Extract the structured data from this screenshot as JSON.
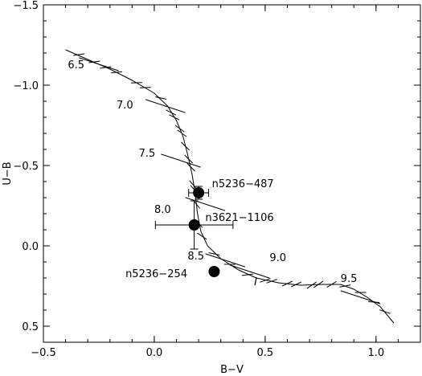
{
  "chart_data": {
    "type": "scatter",
    "xlabel": "B−V",
    "ylabel": "U−B",
    "xlim": [
      -0.5,
      1.2
    ],
    "ylim": [
      0.6,
      -1.5
    ],
    "y_inverted": true,
    "xticks": [
      -0.5,
      0.0,
      0.5,
      1.0
    ],
    "xtick_labels": [
      "−0.5",
      "0.0",
      "0.5",
      "1.0"
    ],
    "yticks": [
      -1.5,
      -1.0,
      -0.5,
      0.0,
      0.5
    ],
    "ytick_labels": [
      "−1.5",
      "−1.0",
      "−0.5",
      "0.0",
      "0.5"
    ],
    "grid": false,
    "model_track": {
      "points": [
        [
          -0.4,
          -1.22
        ],
        [
          -0.3,
          -1.16
        ],
        [
          -0.2,
          -1.1
        ],
        [
          -0.1,
          -1.03
        ],
        [
          0.0,
          -0.95
        ],
        [
          0.06,
          -0.87
        ],
        [
          0.1,
          -0.78
        ],
        [
          0.13,
          -0.68
        ],
        [
          0.15,
          -0.57
        ],
        [
          0.17,
          -0.45
        ],
        [
          0.185,
          -0.32
        ],
        [
          0.195,
          -0.2
        ],
        [
          0.21,
          -0.09
        ],
        [
          0.24,
          0.0
        ],
        [
          0.3,
          0.08
        ],
        [
          0.38,
          0.15
        ],
        [
          0.46,
          0.2
        ],
        [
          0.56,
          0.23
        ],
        [
          0.66,
          0.245
        ],
        [
          0.76,
          0.24
        ],
        [
          0.84,
          0.24
        ],
        [
          0.9,
          0.27
        ],
        [
          0.96,
          0.32
        ],
        [
          1.02,
          0.38
        ],
        [
          1.08,
          0.48
        ]
      ],
      "ticks": [
        {
          "x": -0.34,
          "y": -1.19,
          "len": 0.06,
          "short": true
        },
        {
          "x": -0.27,
          "y": -1.145,
          "len": 0.06,
          "short": true
        },
        {
          "x": -0.22,
          "y": -1.11,
          "len": 0.06,
          "short": true
        },
        {
          "x": -0.17,
          "y": -1.08,
          "len": 0.06,
          "short": true
        },
        {
          "x": -0.08,
          "y": -1.015,
          "len": 0.06,
          "short": true
        },
        {
          "x": -0.04,
          "y": -0.985,
          "len": 0.06,
          "short": true
        },
        {
          "x": 0.03,
          "y": -0.92,
          "len": 0.06,
          "short": true
        },
        {
          "x": 0.075,
          "y": -0.83,
          "len": 0.06,
          "short": true
        },
        {
          "x": 0.09,
          "y": -0.8,
          "len": 0.06,
          "short": true
        },
        {
          "x": 0.115,
          "y": -0.73,
          "len": 0.06,
          "short": true
        },
        {
          "x": 0.125,
          "y": -0.7,
          "len": 0.06,
          "short": true
        },
        {
          "x": 0.14,
          "y": -0.62,
          "len": 0.06,
          "short": true
        },
        {
          "x": 0.155,
          "y": -0.54,
          "len": 0.06,
          "short": true
        },
        {
          "x": 0.165,
          "y": -0.49,
          "len": 0.06,
          "short": true
        },
        {
          "x": 0.175,
          "y": -0.38,
          "len": 0.06,
          "short": true
        },
        {
          "x": 0.18,
          "y": -0.35,
          "len": 0.06,
          "short": true
        },
        {
          "x": 0.19,
          "y": -0.26,
          "len": 0.06,
          "short": true
        },
        {
          "x": 0.2,
          "y": -0.14,
          "len": 0.06,
          "short": true
        },
        {
          "x": 0.215,
          "y": -0.06,
          "len": 0.06,
          "short": true
        },
        {
          "x": 0.27,
          "y": 0.05,
          "len": 0.06,
          "short": true
        },
        {
          "x": 0.34,
          "y": 0.115,
          "len": 0.06,
          "short": true
        },
        {
          "x": 0.42,
          "y": 0.18,
          "len": 0.06,
          "short": true
        },
        {
          "x": 0.5,
          "y": 0.215,
          "len": 0.06,
          "short": true
        },
        {
          "x": 0.53,
          "y": 0.22,
          "len": 0.06,
          "short": true
        },
        {
          "x": 0.6,
          "y": 0.235,
          "len": 0.06,
          "short": true
        },
        {
          "x": 0.64,
          "y": 0.24,
          "len": 0.06,
          "short": true
        },
        {
          "x": 0.71,
          "y": 0.245,
          "len": 0.06,
          "short": true
        },
        {
          "x": 0.74,
          "y": 0.24,
          "len": 0.06,
          "short": true
        },
        {
          "x": 0.8,
          "y": 0.24,
          "len": 0.06,
          "short": true
        },
        {
          "x": 0.86,
          "y": 0.25,
          "len": 0.06,
          "short": true
        },
        {
          "x": 0.93,
          "y": 0.29,
          "len": 0.06,
          "short": true
        },
        {
          "x": 0.99,
          "y": 0.35,
          "len": 0.06,
          "short": true
        },
        {
          "x": 1.04,
          "y": 0.41,
          "len": 0.06,
          "short": true
        }
      ]
    },
    "age_marks": [
      {
        "label": "6.5",
        "x": -0.25,
        "y": -1.13
      },
      {
        "label": "7.0",
        "x": 0.05,
        "y": -0.87
      },
      {
        "label": "7.5",
        "x": 0.12,
        "y": -0.53
      },
      {
        "label": "8.0",
        "x": 0.23,
        "y": -0.26
      },
      {
        "label": "8.5",
        "x": 0.32,
        "y": 0.09
      },
      {
        "label": "9.0",
        "x": 0.43,
        "y": 0.16
      },
      {
        "label": "9.5",
        "x": 0.93,
        "y": 0.32
      }
    ],
    "age_labels": [
      {
        "text": "6.5",
        "x": -0.39,
        "y": -1.13
      },
      {
        "text": "7.0",
        "x": -0.17,
        "y": -0.88
      },
      {
        "text": "7.5",
        "x": -0.07,
        "y": -0.58
      },
      {
        "text": "8.0",
        "x": 0.0,
        "y": -0.23
      },
      {
        "text": "8.5",
        "x": 0.15,
        "y": 0.06
      },
      {
        "text": "9.0",
        "x": 0.52,
        "y": 0.07
      },
      {
        "text": "9.5",
        "x": 0.84,
        "y": 0.2
      }
    ],
    "series": [
      {
        "name": "n5236−487",
        "points": [
          {
            "x": 0.2,
            "y": -0.33,
            "xerr": 0.045,
            "yerr": 0.04,
            "label_dx": 0.06,
            "label_dy": -0.06
          }
        ]
      },
      {
        "name": "n3621−1106",
        "points": [
          {
            "x": 0.18,
            "y": -0.13,
            "xerr": 0.175,
            "yerr": 0.15,
            "label_dx": 0.05,
            "label_dy": -0.05
          }
        ]
      },
      {
        "name": "n5236−254",
        "points": [
          {
            "x": 0.27,
            "y": 0.16,
            "xerr": 0.0,
            "yerr": 0.0,
            "label_dx": -0.4,
            "label_dy": 0.01
          }
        ]
      }
    ],
    "extra_mark": {
      "text": "I",
      "x": 0.45,
      "y": 0.22
    }
  }
}
